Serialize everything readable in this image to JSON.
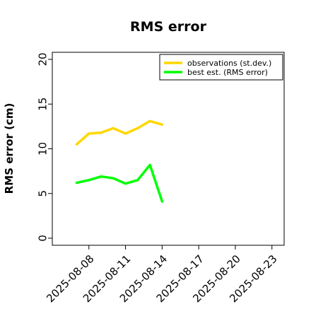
{
  "chart_data": {
    "type": "line",
    "title": "RMS error",
    "xlabel": "",
    "ylabel": "RMS error (cm)",
    "ylim": [
      0,
      20
    ],
    "yticks": [
      0,
      5,
      10,
      15,
      20
    ],
    "xlim": [
      "2025-08-05",
      "2025-08-24"
    ],
    "xticks": [
      "2025-08-08",
      "2025-08-11",
      "2025-08-14",
      "2025-08-17",
      "2025-08-20",
      "2025-08-23"
    ],
    "highlight_tick": "2025-08-14",
    "grid": false,
    "legend": "top-right",
    "series": [
      {
        "name": "observations (st.dev.)",
        "color": "#FFD700",
        "x": [
          "2025-08-07",
          "2025-08-08",
          "2025-08-09",
          "2025-08-10",
          "2025-08-11",
          "2025-08-12",
          "2025-08-13",
          "2025-08-14"
        ],
        "values": [
          10.5,
          11.7,
          11.8,
          12.3,
          11.7,
          12.3,
          13.1,
          12.7
        ]
      },
      {
        "name": "best est. (RMS error)",
        "color": "#00FF00",
        "x": [
          "2025-08-07",
          "2025-08-08",
          "2025-08-09",
          "2025-08-10",
          "2025-08-11",
          "2025-08-12",
          "2025-08-13",
          "2025-08-14"
        ],
        "values": [
          6.2,
          6.5,
          6.9,
          6.7,
          6.1,
          6.5,
          8.2,
          4.1
        ]
      }
    ],
    "colors": {
      "tick_highlight": "#228B22",
      "text": "#000000"
    }
  }
}
